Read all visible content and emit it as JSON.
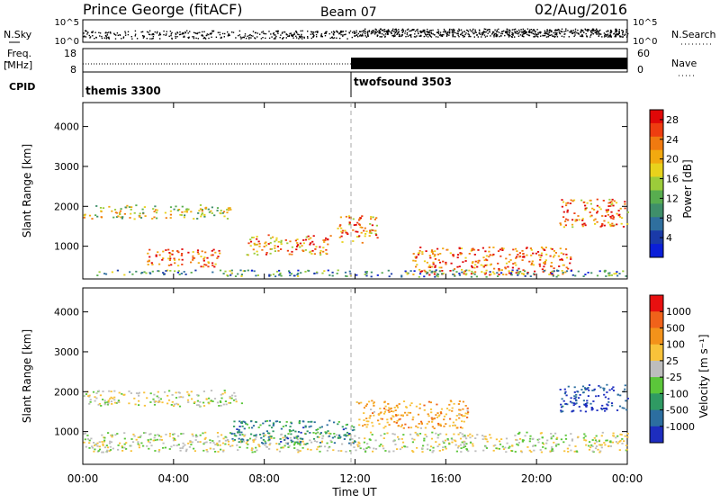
{
  "header": {
    "station": "Prince George (fitACF)",
    "beam": "Beam 07",
    "date": "02/Aug/2016"
  },
  "top_panels": {
    "nsky_label": "N.Sky",
    "nsky_ticks": [
      "10^5",
      "10^0"
    ],
    "nsearch_label": "N.Search",
    "nsearch_ticks": [
      "10^5",
      "10^0"
    ],
    "freq_label": "Freq.",
    "freq_unit": "[MHz]",
    "freq_ticks": [
      "18",
      "8"
    ],
    "nave_label": "Nave",
    "nave_ticks": [
      "60",
      "0"
    ],
    "cpid_label": "CPID",
    "cpid_segments": [
      {
        "name": "themis 3300",
        "start_hour": 0,
        "end_hour": 12
      },
      {
        "name": "twofsound 3503",
        "start_hour": 12,
        "end_hour": 24
      }
    ]
  },
  "chart_data": [
    {
      "type": "heatmap",
      "title": "",
      "ylabel": "Slant Range [km]",
      "xlabel": "",
      "xlim": [
        0,
        24
      ],
      "ylim": [
        180,
        4600
      ],
      "yticks": [
        "1000",
        "2000",
        "3000",
        "4000"
      ],
      "colorbar": {
        "label": "Power [dB]",
        "ticks": [
          "4",
          "8",
          "12",
          "16",
          "20",
          "24",
          "28"
        ],
        "range": [
          0,
          30
        ],
        "colors": [
          "#0b1fd8",
          "#1a3aa8",
          "#2f6f9e",
          "#3f8f6a",
          "#58ad4f",
          "#9ccc3a",
          "#e8d21c",
          "#f2a90f",
          "#f07a10",
          "#ee3d10",
          "#e00808"
        ]
      },
      "scatter_bands": [
        {
          "t0": 0.0,
          "t1": 6.5,
          "r0": 1700,
          "r1": 2050,
          "level": 0.55
        },
        {
          "t0": 2.8,
          "t1": 6.0,
          "r0": 500,
          "r1": 950,
          "level": 0.85
        },
        {
          "t0": 7.2,
          "t1": 11.0,
          "r0": 800,
          "r1": 1300,
          "level": 0.75
        },
        {
          "t0": 11.2,
          "t1": 13.0,
          "r0": 1100,
          "r1": 1800,
          "level": 0.8
        },
        {
          "t0": 14.5,
          "t1": 21.5,
          "r0": 300,
          "r1": 1000,
          "level": 0.85
        },
        {
          "t0": 21.0,
          "t1": 24.0,
          "r0": 1500,
          "r1": 2200,
          "level": 0.8
        },
        {
          "t0": 0.5,
          "t1": 24.0,
          "r0": 250,
          "r1": 420,
          "level": 0.3
        }
      ]
    },
    {
      "type": "heatmap",
      "title": "",
      "ylabel": "Slant Range [km]",
      "xlabel": "Time UT",
      "xlim": [
        0,
        24
      ],
      "ylim": [
        180,
        4600
      ],
      "xticks": [
        "00:00",
        "04:00",
        "08:00",
        "12:00",
        "16:00",
        "20:00",
        "00:00"
      ],
      "yticks": [
        "1000",
        "2000",
        "3000",
        "4000"
      ],
      "colorbar": {
        "label": "Velocity [m s⁻¹]",
        "ticks": [
          "1000",
          "500",
          "100",
          "25",
          "-25",
          "-100",
          "-500",
          "-1000"
        ],
        "colors": [
          "#1d2dbf",
          "#2c6ea0",
          "#2f9a63",
          "#5bc63a",
          "#bdbdbd",
          "#f8c23a",
          "#f3921a",
          "#f0621a",
          "#e81010"
        ]
      },
      "scatter_bands": [
        {
          "t0": 0.0,
          "t1": 7.0,
          "r0": 1650,
          "r1": 2050,
          "level": 0.0
        },
        {
          "t0": 0.0,
          "t1": 24.0,
          "r0": 500,
          "r1": 1000,
          "level": 0.0
        },
        {
          "t0": 6.5,
          "t1": 12.0,
          "r0": 700,
          "r1": 1300,
          "level": -0.6
        },
        {
          "t0": 12.0,
          "t1": 17.0,
          "r0": 1100,
          "r1": 1800,
          "level": 0.4
        },
        {
          "t0": 21.0,
          "t1": 24.0,
          "r0": 1500,
          "r1": 2200,
          "level": -0.9
        }
      ]
    }
  ]
}
